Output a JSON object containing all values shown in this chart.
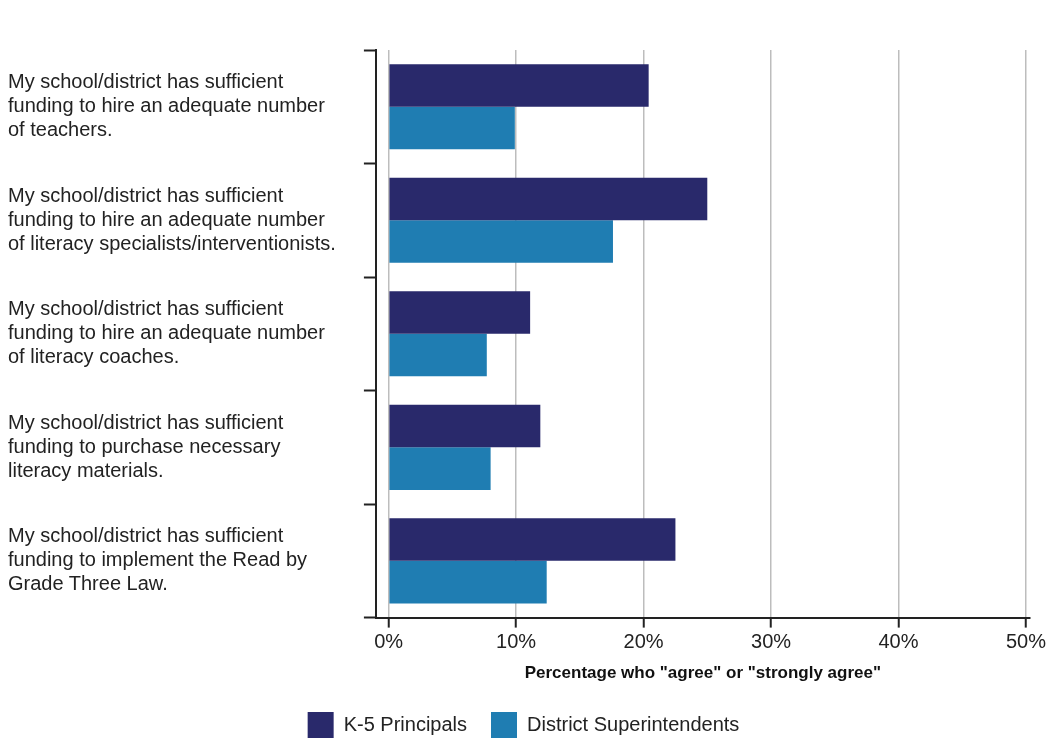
{
  "chart_data": {
    "type": "bar",
    "orientation": "horizontal",
    "xlabel": "Percentage who \"agree\" or \"strongly agree\"",
    "categories": [
      "My school/district has sufficient funding to hire an adequate number of teachers.",
      "My school/district has sufficient funding to hire an adequate number of literacy specialists/interventionists.",
      "My school/district has sufficient funding to hire an adequate number of literacy coaches.",
      "My school/district has sufficient funding to purchase necessary literacy materials.",
      "My school/district has sufficient funding to implement the Read by Grade Three Law."
    ],
    "series": [
      {
        "name": "K-5 Principals",
        "color": "#29296b",
        "values": [
          20.4,
          25.0,
          11.1,
          11.9,
          22.5
        ]
      },
      {
        "name": "District Superintendents",
        "color": "#1f7db2",
        "values": [
          9.9,
          17.6,
          7.7,
          8.0,
          12.4
        ]
      }
    ],
    "xlim": [
      -1,
      50.3
    ],
    "xticks": [
      {
        "value": 0,
        "label": "0%"
      },
      {
        "value": 10,
        "label": "10%"
      },
      {
        "value": 20,
        "label": "20%"
      },
      {
        "value": 30,
        "label": "30%"
      },
      {
        "value": 40,
        "label": "40%"
      },
      {
        "value": 50,
        "label": "50%"
      }
    ],
    "grid": "x",
    "legend": "bottom"
  }
}
